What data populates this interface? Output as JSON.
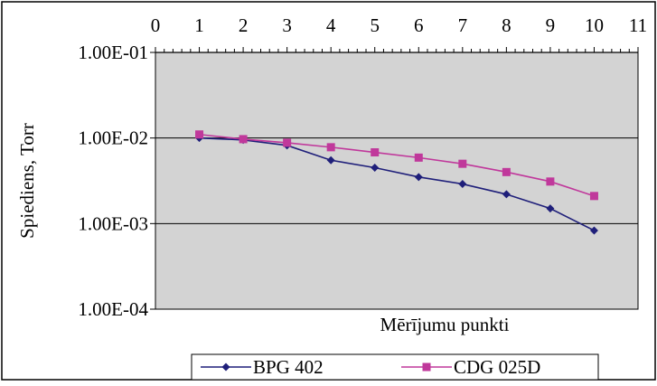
{
  "chart_data": {
    "type": "line",
    "xlabel": "Mērījumu punkti",
    "ylabel": "Spiediens, Torr",
    "xlim": [
      0,
      11
    ],
    "x_ticks": [
      "0",
      "1",
      "2",
      "3",
      "4",
      "5",
      "6",
      "7",
      "8",
      "9",
      "10",
      "11"
    ],
    "x_axis_position": "top",
    "y_scale": "log",
    "ylim": [
      0.0001,
      0.1
    ],
    "y_ticks": [
      {
        "value": 0.1,
        "label": "1.00E-01"
      },
      {
        "value": 0.01,
        "label": "1.00E-02"
      },
      {
        "value": 0.001,
        "label": "1.00E-03"
      },
      {
        "value": 0.0001,
        "label": "1.00E-04"
      }
    ],
    "grid": "horizontal",
    "legend_position": "bottom",
    "x": [
      1,
      2,
      3,
      4,
      5,
      6,
      7,
      8,
      9,
      10
    ],
    "series": [
      {
        "name": "BPG 402",
        "color": "#1f1f7a",
        "marker": "diamond",
        "values": [
          0.01,
          0.0095,
          0.0082,
          0.0055,
          0.0045,
          0.0035,
          0.0029,
          0.0022,
          0.0015,
          0.00083
        ]
      },
      {
        "name": "CDG 025D",
        "color": "#c0389b",
        "marker": "square",
        "values": [
          0.011,
          0.0097,
          0.0088,
          0.0078,
          0.0068,
          0.0059,
          0.005,
          0.004,
          0.0031,
          0.0021
        ]
      }
    ]
  },
  "colors": {
    "plot_background": "#d3d3d3",
    "gridline": "#000000"
  }
}
